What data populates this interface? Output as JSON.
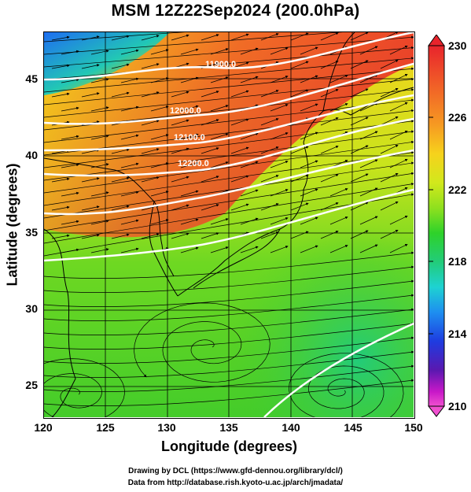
{
  "title": "MSM 12Z22Sep2024 (200.0hPa)",
  "xlabel": "Longitude (degrees)",
  "ylabel": "Latitude  (degrees)",
  "x_ticks": [
    "120",
    "125",
    "130",
    "135",
    "140",
    "145",
    "150"
  ],
  "y_ticks": [
    "25",
    "30",
    "35",
    "40",
    "45"
  ],
  "colorbar": {
    "ticks": [
      "230",
      "226",
      "222",
      "218",
      "214",
      "210"
    ],
    "colors": [
      "#e8242c",
      "#f05a28",
      "#f69a22",
      "#f6d21c",
      "#d2e81c",
      "#8fe01e",
      "#2ed22a",
      "#22cc7a",
      "#1ed2d2",
      "#1e8ef0",
      "#1e3ce0",
      "#5a18b0",
      "#c818c8",
      "#f050d0"
    ]
  },
  "contour_labels": [
    "11900.0",
    "12000.0",
    "12100.0",
    "12200.0"
  ],
  "credits": {
    "line1": "Drawing by DCL (https://www.gfd-dennou.org/library/dcl/)",
    "line2": "Data from http://database.rish.kyoto-u.ac.jp/arch/jmadata/"
  },
  "chart_data": {
    "type": "heatmap",
    "variable": "temperature with streamlines and geopotential height contours",
    "x_range": [
      120,
      150
    ],
    "y_range": [
      23,
      48
    ],
    "colorbar_range": [
      210,
      230
    ],
    "contour_levels": [
      11900.0,
      12000.0,
      12100.0,
      12200.0
    ]
  }
}
